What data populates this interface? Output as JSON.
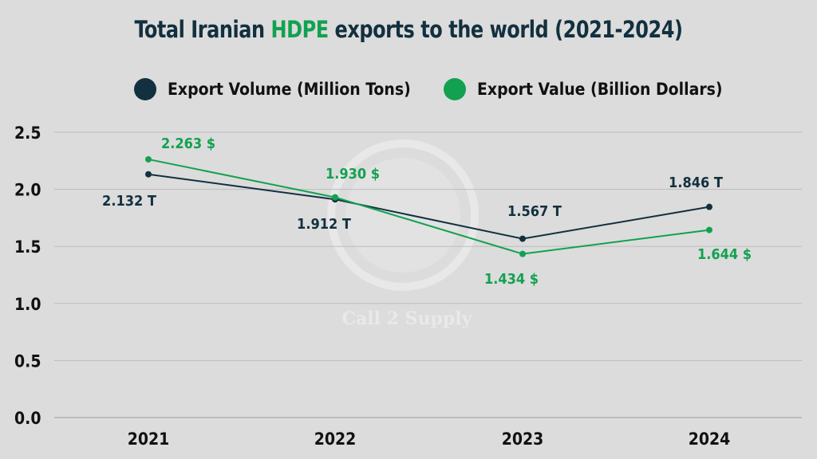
{
  "chart_data": {
    "type": "line",
    "title_parts": [
      "Total Iranian ",
      "HDPE",
      " exports to the world (2021-2024)"
    ],
    "categories": [
      "2021",
      "2022",
      "2023",
      "2024"
    ],
    "ylim": [
      0,
      2.5
    ],
    "yticks": [
      "0.0",
      "0.5",
      "1.0",
      "1.5",
      "2.0",
      "2.5"
    ],
    "grid": true,
    "legend_position": "top-center",
    "series": [
      {
        "name": "Export Volume (Million Tons)",
        "color": "#12303f",
        "values": [
          2.132,
          1.912,
          1.567,
          1.846
        ],
        "labels": [
          "2.132 T",
          "1.912 T",
          "1.567 T",
          "1.846 T"
        ]
      },
      {
        "name": "Export Value (Billion Dollars)",
        "color": "#12a150",
        "values": [
          2.263,
          1.93,
          1.434,
          1.644
        ],
        "labels": [
          "2.263 $",
          "1.930 $",
          "1.434 $",
          "1.644 $"
        ]
      }
    ]
  },
  "watermark": "Call 2 Supply"
}
